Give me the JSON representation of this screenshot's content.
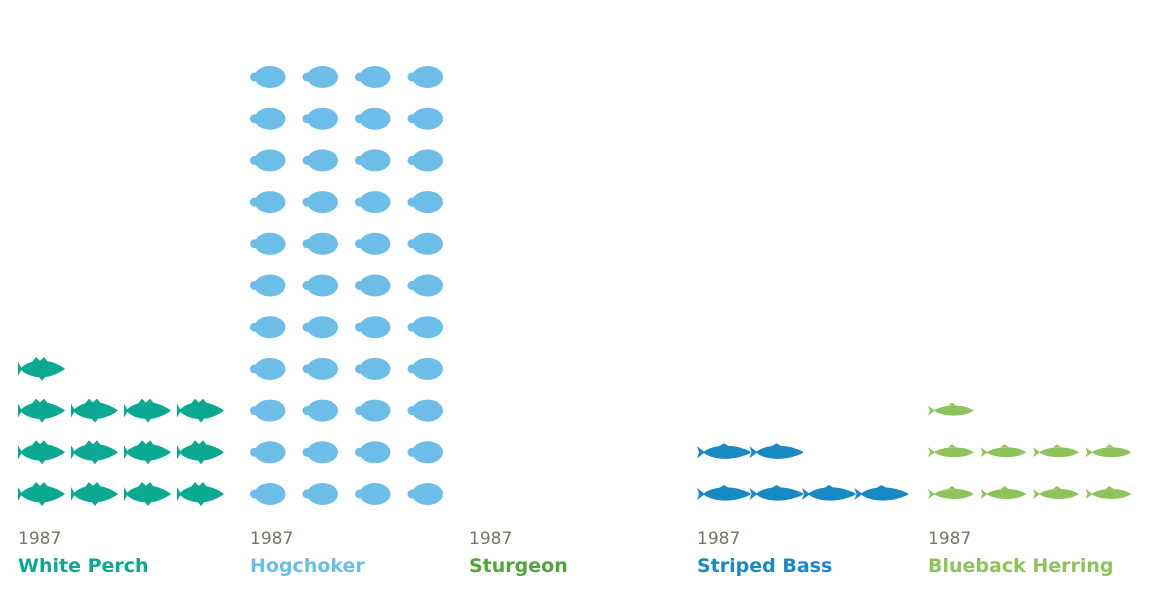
{
  "chart_data": {
    "type": "pictograph",
    "title": "",
    "icons_per_row": 4,
    "series": [
      {
        "name": "White Perch",
        "year": "1987",
        "value": 13,
        "color": "#0ba892",
        "icon": "perch-icon"
      },
      {
        "name": "Hogchoker",
        "year": "1987",
        "value": 44,
        "color": "#6cbde8",
        "icon": "hogchoker-icon"
      },
      {
        "name": "Sturgeon",
        "year": "1987",
        "value": 0,
        "color": "#52a43a",
        "icon": "sturgeon-icon"
      },
      {
        "name": "Striped Bass",
        "year": "1987",
        "value": 6,
        "color": "#1989c4",
        "icon": "bass-icon"
      },
      {
        "name": "Blueback Herring",
        "year": "1987",
        "value": 9,
        "color": "#8dc35a",
        "icon": "herring-icon"
      }
    ]
  }
}
